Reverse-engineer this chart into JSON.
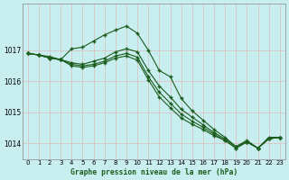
{
  "title": "Graphe pression niveau de la mer (hPa)",
  "bg_color": "#c8eef0",
  "grid_color": "#aadddd",
  "line_color": "#1a5c1a",
  "xlim": [
    -0.5,
    23.5
  ],
  "ylim": [
    1013.5,
    1018.5
  ],
  "yticks": [
    1014,
    1015,
    1016,
    1017
  ],
  "xticks": [
    0,
    1,
    2,
    3,
    4,
    5,
    6,
    7,
    8,
    9,
    10,
    11,
    12,
    13,
    14,
    15,
    16,
    17,
    18,
    19,
    20,
    21,
    22,
    23
  ],
  "series": [
    [
      1016.9,
      1016.85,
      1016.8,
      1016.7,
      1017.05,
      1017.1,
      1017.3,
      1017.5,
      1017.65,
      1017.78,
      1017.55,
      1017.0,
      1016.35,
      1016.15,
      1015.45,
      1015.05,
      1014.75,
      1014.45,
      1014.2,
      1013.9,
      1014.1,
      1013.85,
      1014.2,
      1014.2
    ],
    [
      1016.9,
      1016.85,
      1016.75,
      1016.7,
      1016.6,
      1016.55,
      1016.65,
      1016.75,
      1016.95,
      1017.05,
      1016.95,
      1016.35,
      1015.85,
      1015.5,
      1015.1,
      1014.85,
      1014.6,
      1014.35,
      1014.15,
      1013.9,
      1014.05,
      1013.85,
      1014.15,
      1014.2
    ],
    [
      1016.9,
      1016.85,
      1016.75,
      1016.7,
      1016.55,
      1016.5,
      1016.55,
      1016.65,
      1016.82,
      1016.9,
      1016.78,
      1016.15,
      1015.65,
      1015.3,
      1014.95,
      1014.72,
      1014.52,
      1014.3,
      1014.1,
      1013.85,
      1014.05,
      1013.85,
      1014.15,
      1014.2
    ],
    [
      1016.9,
      1016.85,
      1016.75,
      1016.7,
      1016.5,
      1016.45,
      1016.5,
      1016.6,
      1016.75,
      1016.82,
      1016.68,
      1016.05,
      1015.5,
      1015.15,
      1014.82,
      1014.62,
      1014.45,
      1014.25,
      1014.1,
      1013.85,
      1014.05,
      1013.85,
      1014.15,
      1014.2
    ]
  ],
  "marker": "+",
  "markersize": 3.5,
  "linewidth": 0.8,
  "markeredgewidth": 1.0
}
